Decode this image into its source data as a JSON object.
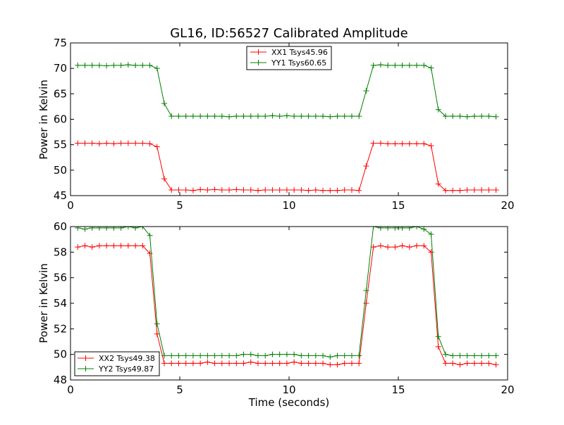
{
  "figure": {
    "title": "GL16, ID:56527 Calibrated Amplitude"
  },
  "chart_data": [
    {
      "type": "line",
      "title": "GL16, ID:56527 Calibrated Amplitude",
      "xlabel": "",
      "ylabel": "Power in Kelvin",
      "xlim": [
        0,
        20
      ],
      "ylim": [
        45,
        75
      ],
      "xticks": [
        0,
        5,
        10,
        15,
        20
      ],
      "yticks": [
        45,
        50,
        55,
        60,
        65,
        70,
        75
      ],
      "grid": false,
      "legend_position": "top-center",
      "x": [
        0.33,
        0.66,
        0.99,
        1.32,
        1.65,
        1.98,
        2.31,
        2.64,
        2.97,
        3.3,
        3.63,
        3.96,
        4.29,
        4.62,
        4.95,
        5.28,
        5.61,
        5.94,
        6.27,
        6.6,
        6.93,
        7.26,
        7.59,
        7.92,
        8.25,
        8.58,
        8.91,
        9.24,
        9.57,
        9.9,
        10.23,
        10.56,
        10.89,
        11.22,
        11.55,
        11.88,
        12.21,
        12.54,
        12.87,
        13.2,
        13.53,
        13.86,
        14.19,
        14.52,
        14.85,
        15.18,
        15.51,
        15.84,
        16.17,
        16.5,
        16.83,
        17.16,
        17.49,
        17.82,
        18.15,
        18.48,
        18.81,
        19.14,
        19.47
      ],
      "series": [
        {
          "name": "XX1 Tsys45.96",
          "color": "#ff0000",
          "values": [
            55.3,
            55.3,
            55.3,
            55.2,
            55.3,
            55.2,
            55.3,
            55.3,
            55.3,
            55.3,
            55.2,
            54.6,
            48.3,
            46.1,
            46.1,
            46.1,
            46.0,
            46.2,
            46.1,
            46.2,
            46.1,
            46.1,
            46.2,
            46.1,
            46.1,
            46.0,
            46.1,
            46.1,
            46.1,
            46.1,
            46.1,
            46.1,
            46.0,
            46.1,
            46.0,
            46.0,
            46.0,
            46.1,
            46.1,
            46.0,
            50.8,
            55.3,
            55.3,
            55.2,
            55.2,
            55.2,
            55.2,
            55.2,
            55.2,
            54.8,
            47.3,
            46.0,
            46.0,
            46.0,
            46.1,
            46.1,
            46.1,
            46.1,
            46.1
          ]
        },
        {
          "name": "YY1 Tsys60.65",
          "color": "#008000",
          "values": [
            70.6,
            70.6,
            70.6,
            70.6,
            70.5,
            70.6,
            70.6,
            70.7,
            70.6,
            70.6,
            70.6,
            70.0,
            63.1,
            60.6,
            60.6,
            60.6,
            60.6,
            60.6,
            60.6,
            60.6,
            60.6,
            60.5,
            60.6,
            60.6,
            60.6,
            60.6,
            60.6,
            60.7,
            60.6,
            60.7,
            60.6,
            60.6,
            60.6,
            60.6,
            60.6,
            60.5,
            60.6,
            60.6,
            60.6,
            60.6,
            65.6,
            70.6,
            70.7,
            70.6,
            70.6,
            70.6,
            70.6,
            70.6,
            70.6,
            70.1,
            61.9,
            60.6,
            60.6,
            60.6,
            60.5,
            60.6,
            60.6,
            60.6,
            60.5
          ]
        }
      ]
    },
    {
      "type": "line",
      "title": "",
      "xlabel": "Time (seconds)",
      "ylabel": "Power in Kelvin",
      "xlim": [
        0,
        20
      ],
      "ylim": [
        48,
        60
      ],
      "xticks": [
        0,
        5,
        10,
        15,
        20
      ],
      "yticks": [
        48,
        50,
        52,
        54,
        56,
        58,
        60
      ],
      "grid": false,
      "legend_position": "lower-left",
      "x": [
        0.33,
        0.66,
        0.99,
        1.32,
        1.65,
        1.98,
        2.31,
        2.64,
        2.97,
        3.3,
        3.63,
        3.96,
        4.29,
        4.62,
        4.95,
        5.28,
        5.61,
        5.94,
        6.27,
        6.6,
        6.93,
        7.26,
        7.59,
        7.92,
        8.25,
        8.58,
        8.91,
        9.24,
        9.57,
        9.9,
        10.23,
        10.56,
        10.89,
        11.22,
        11.55,
        11.88,
        12.21,
        12.54,
        12.87,
        13.2,
        13.53,
        13.86,
        14.19,
        14.52,
        14.85,
        15.18,
        15.51,
        15.84,
        16.17,
        16.5,
        16.83,
        17.16,
        17.49,
        17.82,
        18.15,
        18.48,
        18.81,
        19.14,
        19.47
      ],
      "series": [
        {
          "name": "XX2 Tsys49.38",
          "color": "#ff0000",
          "values": [
            58.4,
            58.5,
            58.4,
            58.5,
            58.5,
            58.5,
            58.5,
            58.5,
            58.5,
            58.5,
            57.9,
            51.6,
            49.3,
            49.3,
            49.3,
            49.3,
            49.3,
            49.3,
            49.4,
            49.3,
            49.3,
            49.3,
            49.3,
            49.3,
            49.4,
            49.3,
            49.3,
            49.3,
            49.3,
            49.3,
            49.4,
            49.3,
            49.3,
            49.3,
            49.3,
            49.2,
            49.2,
            49.3,
            49.3,
            49.3,
            54.0,
            58.4,
            58.5,
            58.4,
            58.4,
            58.5,
            58.4,
            58.5,
            58.5,
            58.0,
            50.6,
            49.3,
            49.3,
            49.2,
            49.3,
            49.3,
            49.3,
            49.3,
            49.2
          ]
        },
        {
          "name": "YY2 Tsys49.87",
          "color": "#008000",
          "values": [
            59.9,
            59.8,
            59.9,
            59.9,
            59.9,
            59.9,
            59.9,
            60.0,
            59.9,
            60.0,
            59.3,
            52.4,
            49.9,
            49.9,
            49.9,
            49.9,
            49.9,
            49.9,
            49.9,
            49.9,
            49.9,
            49.9,
            49.9,
            50.0,
            50.0,
            49.9,
            49.9,
            50.0,
            50.0,
            50.0,
            50.0,
            49.9,
            49.9,
            49.9,
            49.9,
            49.8,
            49.9,
            49.9,
            49.9,
            49.9,
            55.0,
            60.0,
            59.9,
            59.9,
            59.9,
            59.9,
            59.9,
            60.0,
            59.8,
            59.4,
            51.4,
            50.0,
            49.9,
            49.9,
            49.9,
            49.9,
            49.9,
            49.9,
            49.9
          ]
        }
      ]
    }
  ]
}
